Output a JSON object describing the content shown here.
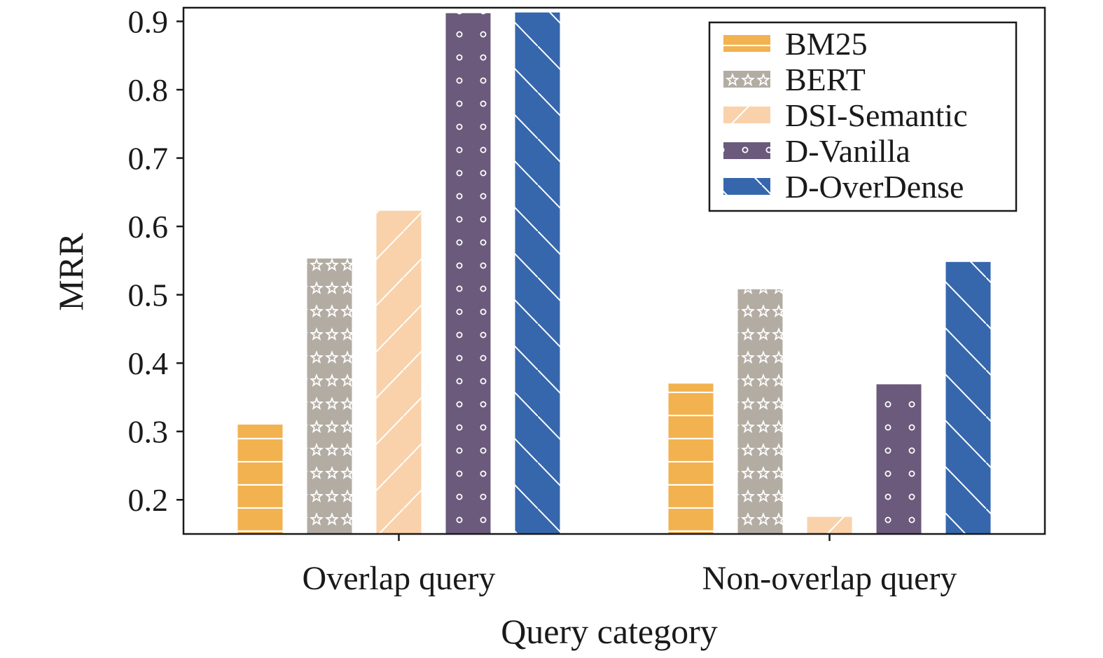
{
  "chart_data": {
    "type": "bar",
    "title": "",
    "xlabel": "Query category",
    "ylabel": "MRR",
    "categories": [
      "Overlap query",
      "Non-overlap query"
    ],
    "ylim": [
      0.15,
      0.92
    ],
    "yticks": [
      "0.2",
      "0.3",
      "0.4",
      "0.5",
      "0.6",
      "0.7",
      "0.8",
      "0.9"
    ],
    "grid": false,
    "legend_position": "top-right",
    "series": [
      {
        "name": "BM25",
        "values": [
          0.31,
          0.37
        ],
        "color": "#f2b250",
        "pattern": "horizontal-lines"
      },
      {
        "name": "BERT",
        "values": [
          0.553,
          0.508
        ],
        "color": "#b3aca3",
        "pattern": "stars"
      },
      {
        "name": "DSI-Semantic",
        "values": [
          0.623,
          0.175
        ],
        "color": "#f9d2ab",
        "pattern": "forward-diagonal"
      },
      {
        "name": "D-Vanilla",
        "values": [
          0.912,
          0.369
        ],
        "color": "#6b5a7b",
        "pattern": "circles"
      },
      {
        "name": "D-OverDense",
        "values": [
          0.913,
          0.548
        ],
        "color": "#3667ad",
        "pattern": "back-diagonal"
      }
    ]
  }
}
